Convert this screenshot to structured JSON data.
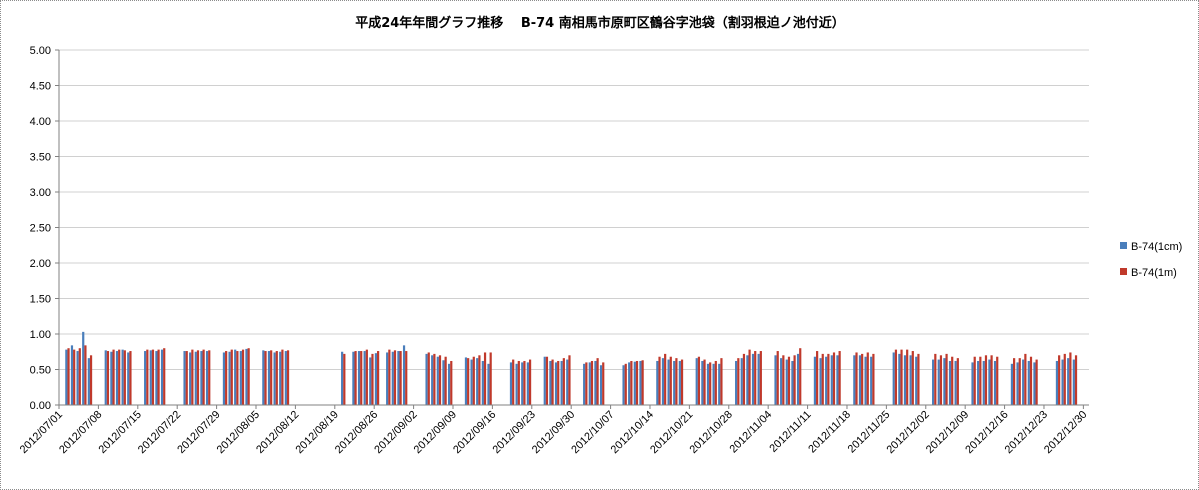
{
  "chart_data": {
    "type": "bar",
    "title": "平成24年年間グラフ推移　 B-74 南相馬市原町区鶴谷字池袋（割羽根迫ノ池付近）",
    "xlabel": "",
    "ylabel": "",
    "ylim": [
      0,
      5
    ],
    "yticks": [
      "0.00",
      "0.50",
      "1.00",
      "1.50",
      "2.00",
      "2.50",
      "3.00",
      "3.50",
      "4.00",
      "4.50",
      "5.00"
    ],
    "x_start": "2012/07/01",
    "x_end": "2012/12/30",
    "xticks": [
      "2012/07/01",
      "2012/07/08",
      "2012/07/15",
      "2012/07/22",
      "2012/07/29",
      "2012/08/05",
      "2012/08/12",
      "2012/08/19",
      "2012/08/26",
      "2012/09/02",
      "2012/09/09",
      "2012/09/16",
      "2012/09/23",
      "2012/09/30",
      "2012/10/07",
      "2012/10/14",
      "2012/10/21",
      "2012/10/28",
      "2012/11/04",
      "2012/11/11",
      "2012/11/18",
      "2012/11/25",
      "2012/12/02",
      "2012/12/09",
      "2012/12/16",
      "2012/12/23",
      "2012/12/30"
    ],
    "grid": true,
    "legend_position": "right",
    "series": [
      {
        "name": "B-74(1cm)",
        "color": "#4a7ebb",
        "points": [
          [
            "2012/07/02",
            0.78
          ],
          [
            "2012/07/03",
            0.84
          ],
          [
            "2012/07/04",
            0.76
          ],
          [
            "2012/07/05",
            1.03
          ],
          [
            "2012/07/06",
            0.66
          ],
          [
            "2012/07/09",
            0.77
          ],
          [
            "2012/07/10",
            0.75
          ],
          [
            "2012/07/11",
            0.76
          ],
          [
            "2012/07/12",
            0.78
          ],
          [
            "2012/07/13",
            0.74
          ],
          [
            "2012/07/16",
            0.76
          ],
          [
            "2012/07/17",
            0.77
          ],
          [
            "2012/07/18",
            0.76
          ],
          [
            "2012/07/19",
            0.78
          ],
          [
            "2012/07/23",
            0.76
          ],
          [
            "2012/07/24",
            0.74
          ],
          [
            "2012/07/25",
            0.75
          ],
          [
            "2012/07/26",
            0.76
          ],
          [
            "2012/07/27",
            0.76
          ],
          [
            "2012/07/30",
            0.74
          ],
          [
            "2012/07/31",
            0.75
          ],
          [
            "2012/08/01",
            0.78
          ],
          [
            "2012/08/02",
            0.76
          ],
          [
            "2012/08/03",
            0.79
          ],
          [
            "2012/08/06",
            0.77
          ],
          [
            "2012/08/07",
            0.76
          ],
          [
            "2012/08/08",
            0.74
          ],
          [
            "2012/08/09",
            0.75
          ],
          [
            "2012/08/10",
            0.76
          ],
          [
            "2012/08/20",
            0.75
          ],
          [
            "2012/08/22",
            0.75
          ],
          [
            "2012/08/23",
            0.76
          ],
          [
            "2012/08/24",
            0.76
          ],
          [
            "2012/08/25",
            0.67
          ],
          [
            "2012/08/26",
            0.73
          ],
          [
            "2012/08/28",
            0.74
          ],
          [
            "2012/08/29",
            0.75
          ],
          [
            "2012/08/30",
            0.76
          ],
          [
            "2012/08/31",
            0.84
          ],
          [
            "2012/09/04",
            0.72
          ],
          [
            "2012/09/05",
            0.7
          ],
          [
            "2012/09/06",
            0.68
          ],
          [
            "2012/09/07",
            0.63
          ],
          [
            "2012/09/08",
            0.58
          ],
          [
            "2012/09/11",
            0.67
          ],
          [
            "2012/09/12",
            0.64
          ],
          [
            "2012/09/13",
            0.66
          ],
          [
            "2012/09/14",
            0.62
          ],
          [
            "2012/09/15",
            0.58
          ],
          [
            "2012/09/19",
            0.6
          ],
          [
            "2012/09/20",
            0.58
          ],
          [
            "2012/09/21",
            0.6
          ],
          [
            "2012/09/22",
            0.6
          ],
          [
            "2012/09/25",
            0.68
          ],
          [
            "2012/09/26",
            0.62
          ],
          [
            "2012/09/27",
            0.6
          ],
          [
            "2012/09/28",
            0.62
          ],
          [
            "2012/09/29",
            0.64
          ],
          [
            "2012/10/02",
            0.58
          ],
          [
            "2012/10/03",
            0.6
          ],
          [
            "2012/10/04",
            0.62
          ],
          [
            "2012/10/05",
            0.56
          ],
          [
            "2012/10/09",
            0.56
          ],
          [
            "2012/10/10",
            0.6
          ],
          [
            "2012/10/11",
            0.61
          ],
          [
            "2012/10/12",
            0.62
          ],
          [
            "2012/10/15",
            0.62
          ],
          [
            "2012/10/16",
            0.66
          ],
          [
            "2012/10/17",
            0.64
          ],
          [
            "2012/10/18",
            0.62
          ],
          [
            "2012/10/19",
            0.62
          ],
          [
            "2012/10/22",
            0.66
          ],
          [
            "2012/10/23",
            0.62
          ],
          [
            "2012/10/24",
            0.58
          ],
          [
            "2012/10/25",
            0.58
          ],
          [
            "2012/10/26",
            0.58
          ],
          [
            "2012/10/29",
            0.62
          ],
          [
            "2012/10/30",
            0.66
          ],
          [
            "2012/10/31",
            0.7
          ],
          [
            "2012/11/01",
            0.72
          ],
          [
            "2012/11/02",
            0.72
          ],
          [
            "2012/11/05",
            0.7
          ],
          [
            "2012/11/06",
            0.66
          ],
          [
            "2012/11/07",
            0.64
          ],
          [
            "2012/11/08",
            0.62
          ],
          [
            "2012/11/09",
            0.72
          ],
          [
            "2012/11/12",
            0.68
          ],
          [
            "2012/11/13",
            0.66
          ],
          [
            "2012/11/14",
            0.68
          ],
          [
            "2012/11/15",
            0.7
          ],
          [
            "2012/11/16",
            0.7
          ],
          [
            "2012/11/19",
            0.7
          ],
          [
            "2012/11/20",
            0.7
          ],
          [
            "2012/11/21",
            0.68
          ],
          [
            "2012/11/22",
            0.68
          ],
          [
            "2012/11/26",
            0.74
          ],
          [
            "2012/11/27",
            0.72
          ],
          [
            "2012/11/28",
            0.7
          ],
          [
            "2012/11/29",
            0.7
          ],
          [
            "2012/11/30",
            0.68
          ],
          [
            "2012/12/03",
            0.64
          ],
          [
            "2012/12/04",
            0.64
          ],
          [
            "2012/12/05",
            0.66
          ],
          [
            "2012/12/06",
            0.62
          ],
          [
            "2012/12/07",
            0.62
          ],
          [
            "2012/12/10",
            0.6
          ],
          [
            "2012/12/11",
            0.62
          ],
          [
            "2012/12/12",
            0.62
          ],
          [
            "2012/12/13",
            0.64
          ],
          [
            "2012/12/14",
            0.62
          ],
          [
            "2012/12/17",
            0.58
          ],
          [
            "2012/12/18",
            0.6
          ],
          [
            "2012/12/19",
            0.64
          ],
          [
            "2012/12/20",
            0.62
          ],
          [
            "2012/12/21",
            0.6
          ],
          [
            "2012/12/25",
            0.62
          ],
          [
            "2012/12/26",
            0.64
          ],
          [
            "2012/12/27",
            0.66
          ],
          [
            "2012/12/28",
            0.64
          ]
        ]
      },
      {
        "name": "B-74(1m)",
        "color": "#c0392b",
        "points": [
          [
            "2012/07/02",
            0.8
          ],
          [
            "2012/07/03",
            0.78
          ],
          [
            "2012/07/04",
            0.8
          ],
          [
            "2012/07/05",
            0.84
          ],
          [
            "2012/07/06",
            0.7
          ],
          [
            "2012/07/09",
            0.76
          ],
          [
            "2012/07/10",
            0.78
          ],
          [
            "2012/07/11",
            0.78
          ],
          [
            "2012/07/12",
            0.77
          ],
          [
            "2012/07/13",
            0.76
          ],
          [
            "2012/07/16",
            0.78
          ],
          [
            "2012/07/17",
            0.78
          ],
          [
            "2012/07/18",
            0.78
          ],
          [
            "2012/07/19",
            0.8
          ],
          [
            "2012/07/23",
            0.76
          ],
          [
            "2012/07/24",
            0.78
          ],
          [
            "2012/07/25",
            0.77
          ],
          [
            "2012/07/26",
            0.78
          ],
          [
            "2012/07/27",
            0.77
          ],
          [
            "2012/07/30",
            0.76
          ],
          [
            "2012/07/31",
            0.78
          ],
          [
            "2012/08/01",
            0.76
          ],
          [
            "2012/08/02",
            0.78
          ],
          [
            "2012/08/03",
            0.8
          ],
          [
            "2012/08/06",
            0.76
          ],
          [
            "2012/08/07",
            0.77
          ],
          [
            "2012/08/08",
            0.76
          ],
          [
            "2012/08/09",
            0.78
          ],
          [
            "2012/08/10",
            0.77
          ],
          [
            "2012/08/20",
            0.72
          ],
          [
            "2012/08/22",
            0.76
          ],
          [
            "2012/08/23",
            0.76
          ],
          [
            "2012/08/24",
            0.78
          ],
          [
            "2012/08/25",
            0.72
          ],
          [
            "2012/08/26",
            0.76
          ],
          [
            "2012/08/28",
            0.78
          ],
          [
            "2012/08/29",
            0.77
          ],
          [
            "2012/08/30",
            0.76
          ],
          [
            "2012/08/31",
            0.76
          ],
          [
            "2012/09/04",
            0.74
          ],
          [
            "2012/09/05",
            0.72
          ],
          [
            "2012/09/06",
            0.7
          ],
          [
            "2012/09/07",
            0.68
          ],
          [
            "2012/09/08",
            0.62
          ],
          [
            "2012/09/11",
            0.66
          ],
          [
            "2012/09/12",
            0.68
          ],
          [
            "2012/09/13",
            0.7
          ],
          [
            "2012/09/14",
            0.74
          ],
          [
            "2012/09/15",
            0.74
          ],
          [
            "2012/09/19",
            0.64
          ],
          [
            "2012/09/20",
            0.62
          ],
          [
            "2012/09/21",
            0.62
          ],
          [
            "2012/09/22",
            0.64
          ],
          [
            "2012/09/25",
            0.68
          ],
          [
            "2012/09/26",
            0.64
          ],
          [
            "2012/09/27",
            0.62
          ],
          [
            "2012/09/28",
            0.66
          ],
          [
            "2012/09/29",
            0.7
          ],
          [
            "2012/10/02",
            0.6
          ],
          [
            "2012/10/03",
            0.62
          ],
          [
            "2012/10/04",
            0.66
          ],
          [
            "2012/10/05",
            0.6
          ],
          [
            "2012/10/09",
            0.58
          ],
          [
            "2012/10/10",
            0.62
          ],
          [
            "2012/10/11",
            0.62
          ],
          [
            "2012/10/12",
            0.63
          ],
          [
            "2012/10/15",
            0.68
          ],
          [
            "2012/10/16",
            0.72
          ],
          [
            "2012/10/17",
            0.68
          ],
          [
            "2012/10/18",
            0.66
          ],
          [
            "2012/10/19",
            0.64
          ],
          [
            "2012/10/22",
            0.68
          ],
          [
            "2012/10/23",
            0.64
          ],
          [
            "2012/10/24",
            0.6
          ],
          [
            "2012/10/25",
            0.62
          ],
          [
            "2012/10/26",
            0.66
          ],
          [
            "2012/10/29",
            0.66
          ],
          [
            "2012/10/30",
            0.72
          ],
          [
            "2012/10/31",
            0.78
          ],
          [
            "2012/11/01",
            0.76
          ],
          [
            "2012/11/02",
            0.76
          ],
          [
            "2012/11/05",
            0.76
          ],
          [
            "2012/11/06",
            0.7
          ],
          [
            "2012/11/07",
            0.68
          ],
          [
            "2012/11/08",
            0.7
          ],
          [
            "2012/11/09",
            0.8
          ],
          [
            "2012/11/12",
            0.76
          ],
          [
            "2012/11/13",
            0.72
          ],
          [
            "2012/11/14",
            0.72
          ],
          [
            "2012/11/15",
            0.74
          ],
          [
            "2012/11/16",
            0.76
          ],
          [
            "2012/11/19",
            0.74
          ],
          [
            "2012/11/20",
            0.72
          ],
          [
            "2012/11/21",
            0.74
          ],
          [
            "2012/11/22",
            0.72
          ],
          [
            "2012/11/26",
            0.78
          ],
          [
            "2012/11/27",
            0.78
          ],
          [
            "2012/11/28",
            0.78
          ],
          [
            "2012/11/29",
            0.76
          ],
          [
            "2012/11/30",
            0.72
          ],
          [
            "2012/12/03",
            0.72
          ],
          [
            "2012/12/04",
            0.7
          ],
          [
            "2012/12/05",
            0.72
          ],
          [
            "2012/12/06",
            0.68
          ],
          [
            "2012/12/07",
            0.66
          ],
          [
            "2012/12/10",
            0.68
          ],
          [
            "2012/12/11",
            0.68
          ],
          [
            "2012/12/12",
            0.7
          ],
          [
            "2012/12/13",
            0.7
          ],
          [
            "2012/12/14",
            0.68
          ],
          [
            "2012/12/17",
            0.66
          ],
          [
            "2012/12/18",
            0.66
          ],
          [
            "2012/12/19",
            0.72
          ],
          [
            "2012/12/20",
            0.68
          ],
          [
            "2012/12/21",
            0.64
          ],
          [
            "2012/12/25",
            0.7
          ],
          [
            "2012/12/26",
            0.72
          ],
          [
            "2012/12/27",
            0.74
          ],
          [
            "2012/12/28",
            0.7
          ]
        ]
      }
    ]
  }
}
